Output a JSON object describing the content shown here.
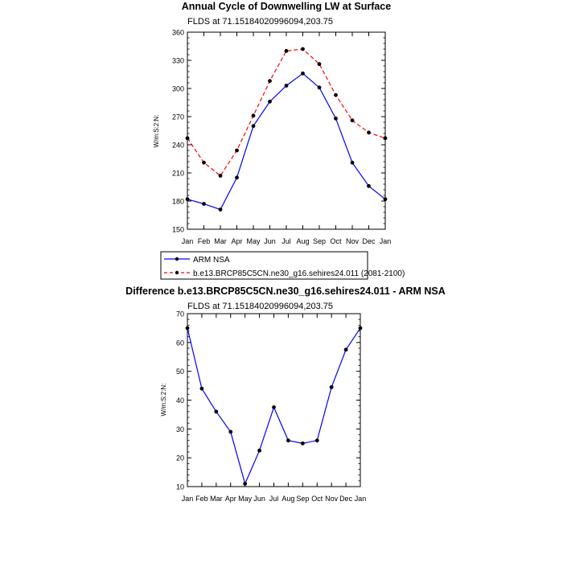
{
  "chart_data": [
    {
      "type": "line",
      "title": "Annual Cycle of Downwelling LW at Surface",
      "subtitle": "FLDS at 71.15184020996094,203.75",
      "ylabel": "W/m:S:2:N:",
      "xlabel": "",
      "categories": [
        "Jan",
        "Feb",
        "Mar",
        "Apr",
        "May",
        "Jun",
        "Jul",
        "Aug",
        "Sep",
        "Oct",
        "Nov",
        "Dec",
        "Jan"
      ],
      "ylim": [
        150,
        360
      ],
      "yticks": [
        150,
        180,
        210,
        240,
        270,
        300,
        330,
        360
      ],
      "legend_position": "bottom-left",
      "series": [
        {
          "name": "ARM NSA",
          "color": "#0000ff",
          "dash": "solid",
          "values": [
            182,
            177,
            171,
            205,
            260,
            286,
            303,
            316,
            301,
            268,
            221,
            196,
            182
          ]
        },
        {
          "name": "b.e13.BRCP85C5CN.ne30_g16.sehires24.011 (2081-2100)",
          "color": "#ff0000",
          "dash": "dashed",
          "values": [
            247,
            221,
            207,
            234,
            271,
            308,
            340,
            342,
            326,
            293,
            266,
            253,
            247
          ]
        }
      ]
    },
    {
      "type": "line",
      "title": "Difference b.e13.BRCP85C5CN.ne30_g16.sehires24.011 - ARM NSA",
      "subtitle": "FLDS at 71.15184020996094,203.75",
      "ylabel": "W/m:S:2:N:",
      "xlabel": "",
      "categories": [
        "Jan",
        "Feb",
        "Mar",
        "Apr",
        "May",
        "Jun",
        "Jul",
        "Aug",
        "Sep",
        "Oct",
        "Nov",
        "Dec",
        "Jan"
      ],
      "ylim": [
        10,
        70
      ],
      "yticks": [
        10,
        20,
        30,
        40,
        50,
        60,
        70
      ],
      "series": [
        {
          "name": "Difference",
          "color": "#0000ff",
          "dash": "solid",
          "values": [
            65,
            44,
            36,
            29,
            11,
            22.5,
            37.5,
            26,
            25,
            26,
            44.5,
            57.5,
            65
          ]
        }
      ]
    }
  ]
}
